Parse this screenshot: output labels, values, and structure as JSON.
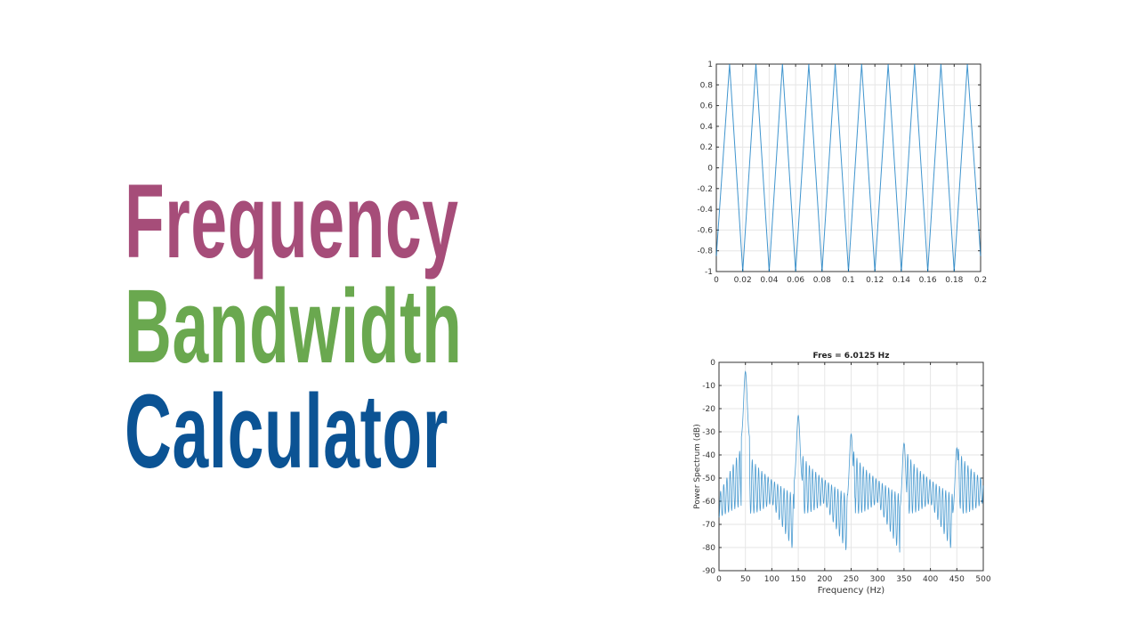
{
  "title": {
    "line1": "Frequency",
    "line2": "Bandwidth",
    "line3": "Calculator",
    "colors": {
      "line1": "#a64d79",
      "line2": "#6aa84f",
      "line3": "#0b5394"
    }
  },
  "chart_data": [
    {
      "type": "line",
      "title": "",
      "xlabel": "",
      "ylabel": "",
      "xlim": [
        0,
        0.2
      ],
      "ylim": [
        -1,
        1
      ],
      "xticks": [
        "0",
        "0.02",
        "0.04",
        "0.06",
        "0.08",
        "0.1",
        "0.12",
        "0.14",
        "0.16",
        "0.18",
        "0.2"
      ],
      "yticks": [
        "-1",
        "-0.8",
        "-0.6",
        "-0.4",
        "-0.2",
        "0",
        "0.2",
        "0.4",
        "0.6",
        "0.8",
        "1"
      ],
      "grid": true,
      "series": [
        {
          "color": "#0072bd",
          "x": [
            0,
            0.01,
            0.02,
            0.03,
            0.04,
            0.05,
            0.06,
            0.07,
            0.08,
            0.09,
            0.1,
            0.11,
            0.12,
            0.13,
            0.14,
            0.15,
            0.16,
            0.17,
            0.18,
            0.19,
            0.2
          ],
          "y": [
            -0.85,
            1,
            -1,
            1,
            -1,
            1,
            -1,
            1,
            -1,
            1,
            -1,
            1,
            -1,
            1,
            -1,
            1,
            -1,
            1,
            -1,
            1,
            -0.85
          ]
        }
      ]
    },
    {
      "type": "line",
      "title": "Fres = 6.0125 Hz",
      "xlabel": "Frequency (Hz)",
      "ylabel": "Power Spectrum (dB)",
      "xlim": [
        0,
        500
      ],
      "ylim": [
        -90,
        0
      ],
      "xticks": [
        "0",
        "50",
        "100",
        "150",
        "200",
        "250",
        "300",
        "350",
        "400",
        "450",
        "500"
      ],
      "yticks": [
        "-90",
        "-80",
        "-70",
        "-60",
        "-50",
        "-40",
        "-30",
        "-20",
        "-10",
        "0"
      ],
      "grid": true,
      "peaks": [
        {
          "x": 50,
          "y": -4
        },
        {
          "x": 150,
          "y": -23
        },
        {
          "x": 250,
          "y": -31
        },
        {
          "x": 350,
          "y": -35
        },
        {
          "x": 450,
          "y": -37
        }
      ],
      "series": [
        {
          "color": "#0072bd"
        }
      ]
    }
  ]
}
